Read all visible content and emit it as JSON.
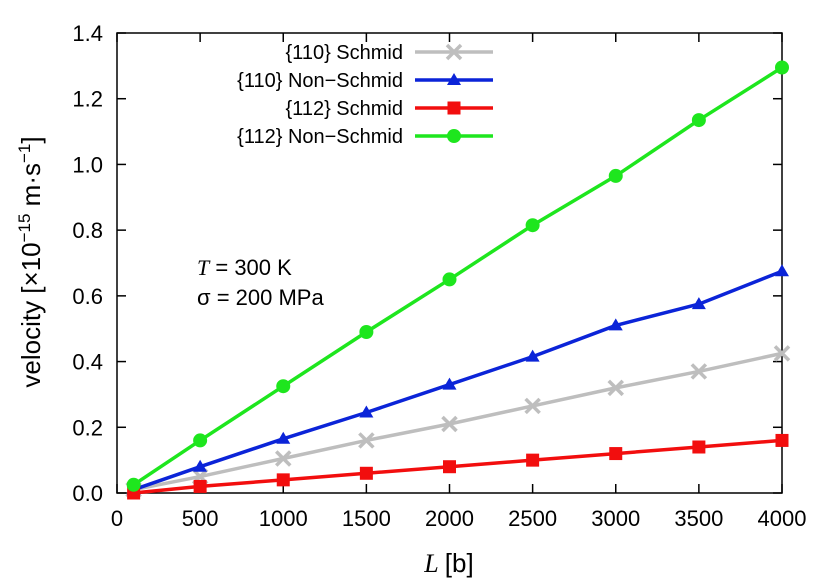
{
  "chart_data": {
    "type": "line",
    "title": "",
    "xlabel": {
      "var": "L",
      "unit": "[b]"
    },
    "ylabel": {
      "prefix": "velocity [×10",
      "exp1": "−15",
      "mid": " m·s",
      "exp2": "−1",
      "suffix": "]"
    },
    "xlim": [
      0,
      4000
    ],
    "ylim": [
      0,
      1.4
    ],
    "xticks": [
      0,
      500,
      1000,
      1500,
      2000,
      2500,
      3000,
      3500,
      4000
    ],
    "xtick_labels": [
      "0",
      "500",
      "1000",
      "1500",
      "2000",
      "2500",
      "3000",
      "3500",
      "4000"
    ],
    "yticks": [
      0,
      0.2,
      0.4,
      0.6,
      0.8,
      1.0,
      1.2,
      1.4
    ],
    "ytick_labels": [
      "0.0",
      "0.2",
      "0.4",
      "0.6",
      "0.8",
      "1.0",
      "1.2",
      "1.4"
    ],
    "grid": false,
    "legend_position": "top-left",
    "x": [
      100,
      500,
      1000,
      1500,
      2000,
      2500,
      3000,
      3500,
      4000
    ],
    "series": [
      {
        "name": "{110} Schmid",
        "color": "#bebebe",
        "marker": "cross",
        "values": [
          0.01,
          0.05,
          0.105,
          0.16,
          0.21,
          0.265,
          0.32,
          0.37,
          0.425
        ]
      },
      {
        "name": "{110} Non−Schmid",
        "color": "#0b24d8",
        "marker": "triangle",
        "values": [
          0.01,
          0.08,
          0.165,
          0.245,
          0.33,
          0.415,
          0.51,
          0.575,
          0.675
        ]
      },
      {
        "name": "{112} Schmid",
        "color": "#f20e0e",
        "marker": "square",
        "values": [
          0.0,
          0.02,
          0.04,
          0.06,
          0.08,
          0.1,
          0.12,
          0.14,
          0.16
        ]
      },
      {
        "name": "{112} Non−Schmid",
        "color": "#1ee61e",
        "marker": "circle",
        "values": [
          0.025,
          0.16,
          0.325,
          0.49,
          0.65,
          0.815,
          0.965,
          1.135,
          1.295
        ]
      }
    ],
    "annotations": [
      {
        "var": "T",
        "text": " = 300 K"
      },
      {
        "var": "σ",
        "text": " = 200 MPa"
      }
    ]
  }
}
